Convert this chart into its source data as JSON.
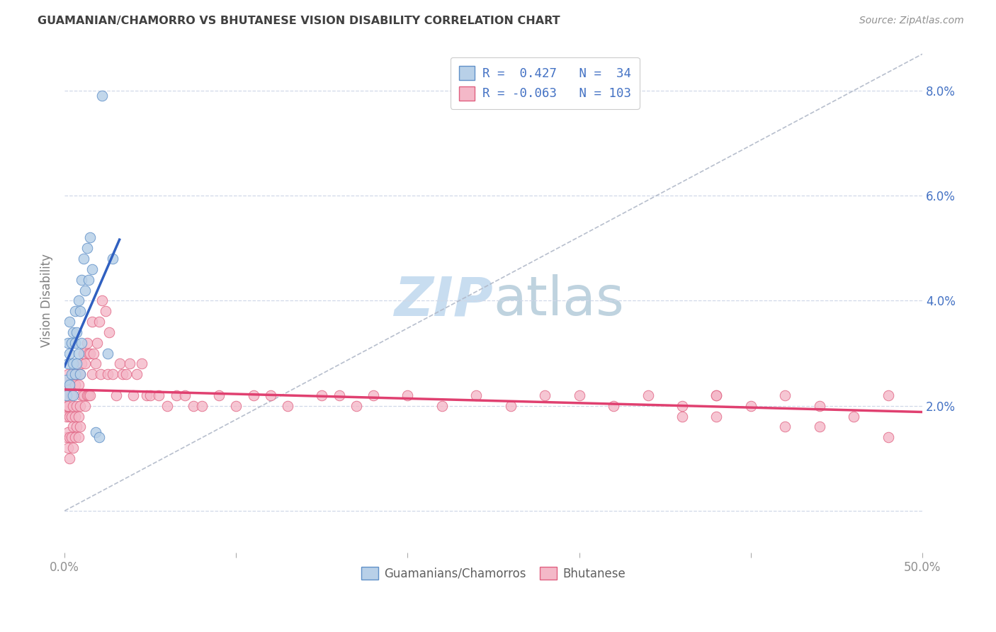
{
  "title": "GUAMANIAN/CHAMORRO VS BHUTANESE VISION DISABILITY CORRELATION CHART",
  "source": "Source: ZipAtlas.com",
  "ylabel": "Vision Disability",
  "y_ticks": [
    0.0,
    0.02,
    0.04,
    0.06,
    0.08
  ],
  "y_tick_labels": [
    "",
    "2.0%",
    "4.0%",
    "6.0%",
    "8.0%"
  ],
  "xlim": [
    0.0,
    0.5
  ],
  "ylim": [
    -0.008,
    0.088
  ],
  "r_guam": 0.427,
  "n_guam": 34,
  "r_bhut": -0.063,
  "n_bhut": 103,
  "color_guam_fill": "#b8d0e8",
  "color_guam_edge": "#6090c8",
  "color_bhut_fill": "#f4b8c8",
  "color_bhut_edge": "#e06080",
  "color_line_guam": "#3060c0",
  "color_line_bhut": "#e04070",
  "color_diag": "#b0b8c8",
  "color_grid": "#d0d8e8",
  "watermark_color": "#c8ddf0",
  "legend_label_guam": "Guamanians/Chamorros",
  "legend_label_bhut": "Bhutanese",
  "title_color": "#404040",
  "source_color": "#909090",
  "ylabel_color": "#808080",
  "tick_color": "#909090",
  "right_tick_color": "#4472c4",
  "guam_x": [
    0.001,
    0.001,
    0.002,
    0.002,
    0.003,
    0.003,
    0.003,
    0.004,
    0.004,
    0.005,
    0.005,
    0.005,
    0.006,
    0.006,
    0.006,
    0.007,
    0.007,
    0.008,
    0.008,
    0.009,
    0.009,
    0.01,
    0.01,
    0.011,
    0.012,
    0.013,
    0.014,
    0.015,
    0.016,
    0.018,
    0.02,
    0.022,
    0.025,
    0.028
  ],
  "guam_y": [
    0.025,
    0.022,
    0.028,
    0.032,
    0.024,
    0.03,
    0.036,
    0.026,
    0.032,
    0.022,
    0.028,
    0.034,
    0.026,
    0.032,
    0.038,
    0.028,
    0.034,
    0.03,
    0.04,
    0.026,
    0.038,
    0.032,
    0.044,
    0.048,
    0.042,
    0.05,
    0.044,
    0.052,
    0.046,
    0.015,
    0.014,
    0.079,
    0.03,
    0.048
  ],
  "bhut_x": [
    0.0,
    0.0,
    0.001,
    0.001,
    0.001,
    0.001,
    0.002,
    0.002,
    0.002,
    0.002,
    0.003,
    0.003,
    0.003,
    0.003,
    0.004,
    0.004,
    0.004,
    0.005,
    0.005,
    0.005,
    0.005,
    0.006,
    0.006,
    0.006,
    0.007,
    0.007,
    0.007,
    0.008,
    0.008,
    0.008,
    0.009,
    0.009,
    0.009,
    0.01,
    0.01,
    0.011,
    0.011,
    0.012,
    0.012,
    0.013,
    0.013,
    0.014,
    0.014,
    0.015,
    0.015,
    0.016,
    0.016,
    0.017,
    0.018,
    0.019,
    0.02,
    0.021,
    0.022,
    0.024,
    0.025,
    0.026,
    0.028,
    0.03,
    0.032,
    0.034,
    0.036,
    0.038,
    0.04,
    0.042,
    0.045,
    0.048,
    0.05,
    0.055,
    0.06,
    0.065,
    0.07,
    0.075,
    0.08,
    0.09,
    0.1,
    0.11,
    0.12,
    0.13,
    0.15,
    0.16,
    0.17,
    0.18,
    0.2,
    0.22,
    0.24,
    0.26,
    0.28,
    0.3,
    0.32,
    0.34,
    0.36,
    0.38,
    0.4,
    0.42,
    0.44,
    0.46,
    0.48,
    0.38,
    0.42,
    0.38,
    0.36,
    0.44,
    0.48
  ],
  "bhut_y": [
    0.024,
    0.019,
    0.022,
    0.018,
    0.014,
    0.02,
    0.026,
    0.02,
    0.015,
    0.012,
    0.024,
    0.018,
    0.014,
    0.01,
    0.022,
    0.018,
    0.014,
    0.026,
    0.02,
    0.016,
    0.012,
    0.024,
    0.018,
    0.014,
    0.026,
    0.02,
    0.016,
    0.024,
    0.018,
    0.014,
    0.026,
    0.02,
    0.016,
    0.028,
    0.022,
    0.03,
    0.022,
    0.028,
    0.02,
    0.032,
    0.022,
    0.03,
    0.022,
    0.03,
    0.022,
    0.036,
    0.026,
    0.03,
    0.028,
    0.032,
    0.036,
    0.026,
    0.04,
    0.038,
    0.026,
    0.034,
    0.026,
    0.022,
    0.028,
    0.026,
    0.026,
    0.028,
    0.022,
    0.026,
    0.028,
    0.022,
    0.022,
    0.022,
    0.02,
    0.022,
    0.022,
    0.02,
    0.02,
    0.022,
    0.02,
    0.022,
    0.022,
    0.02,
    0.022,
    0.022,
    0.02,
    0.022,
    0.022,
    0.02,
    0.022,
    0.02,
    0.022,
    0.022,
    0.02,
    0.022,
    0.02,
    0.022,
    0.02,
    0.022,
    0.02,
    0.018,
    0.022,
    0.018,
    0.016,
    0.022,
    0.018,
    0.016,
    0.014
  ]
}
